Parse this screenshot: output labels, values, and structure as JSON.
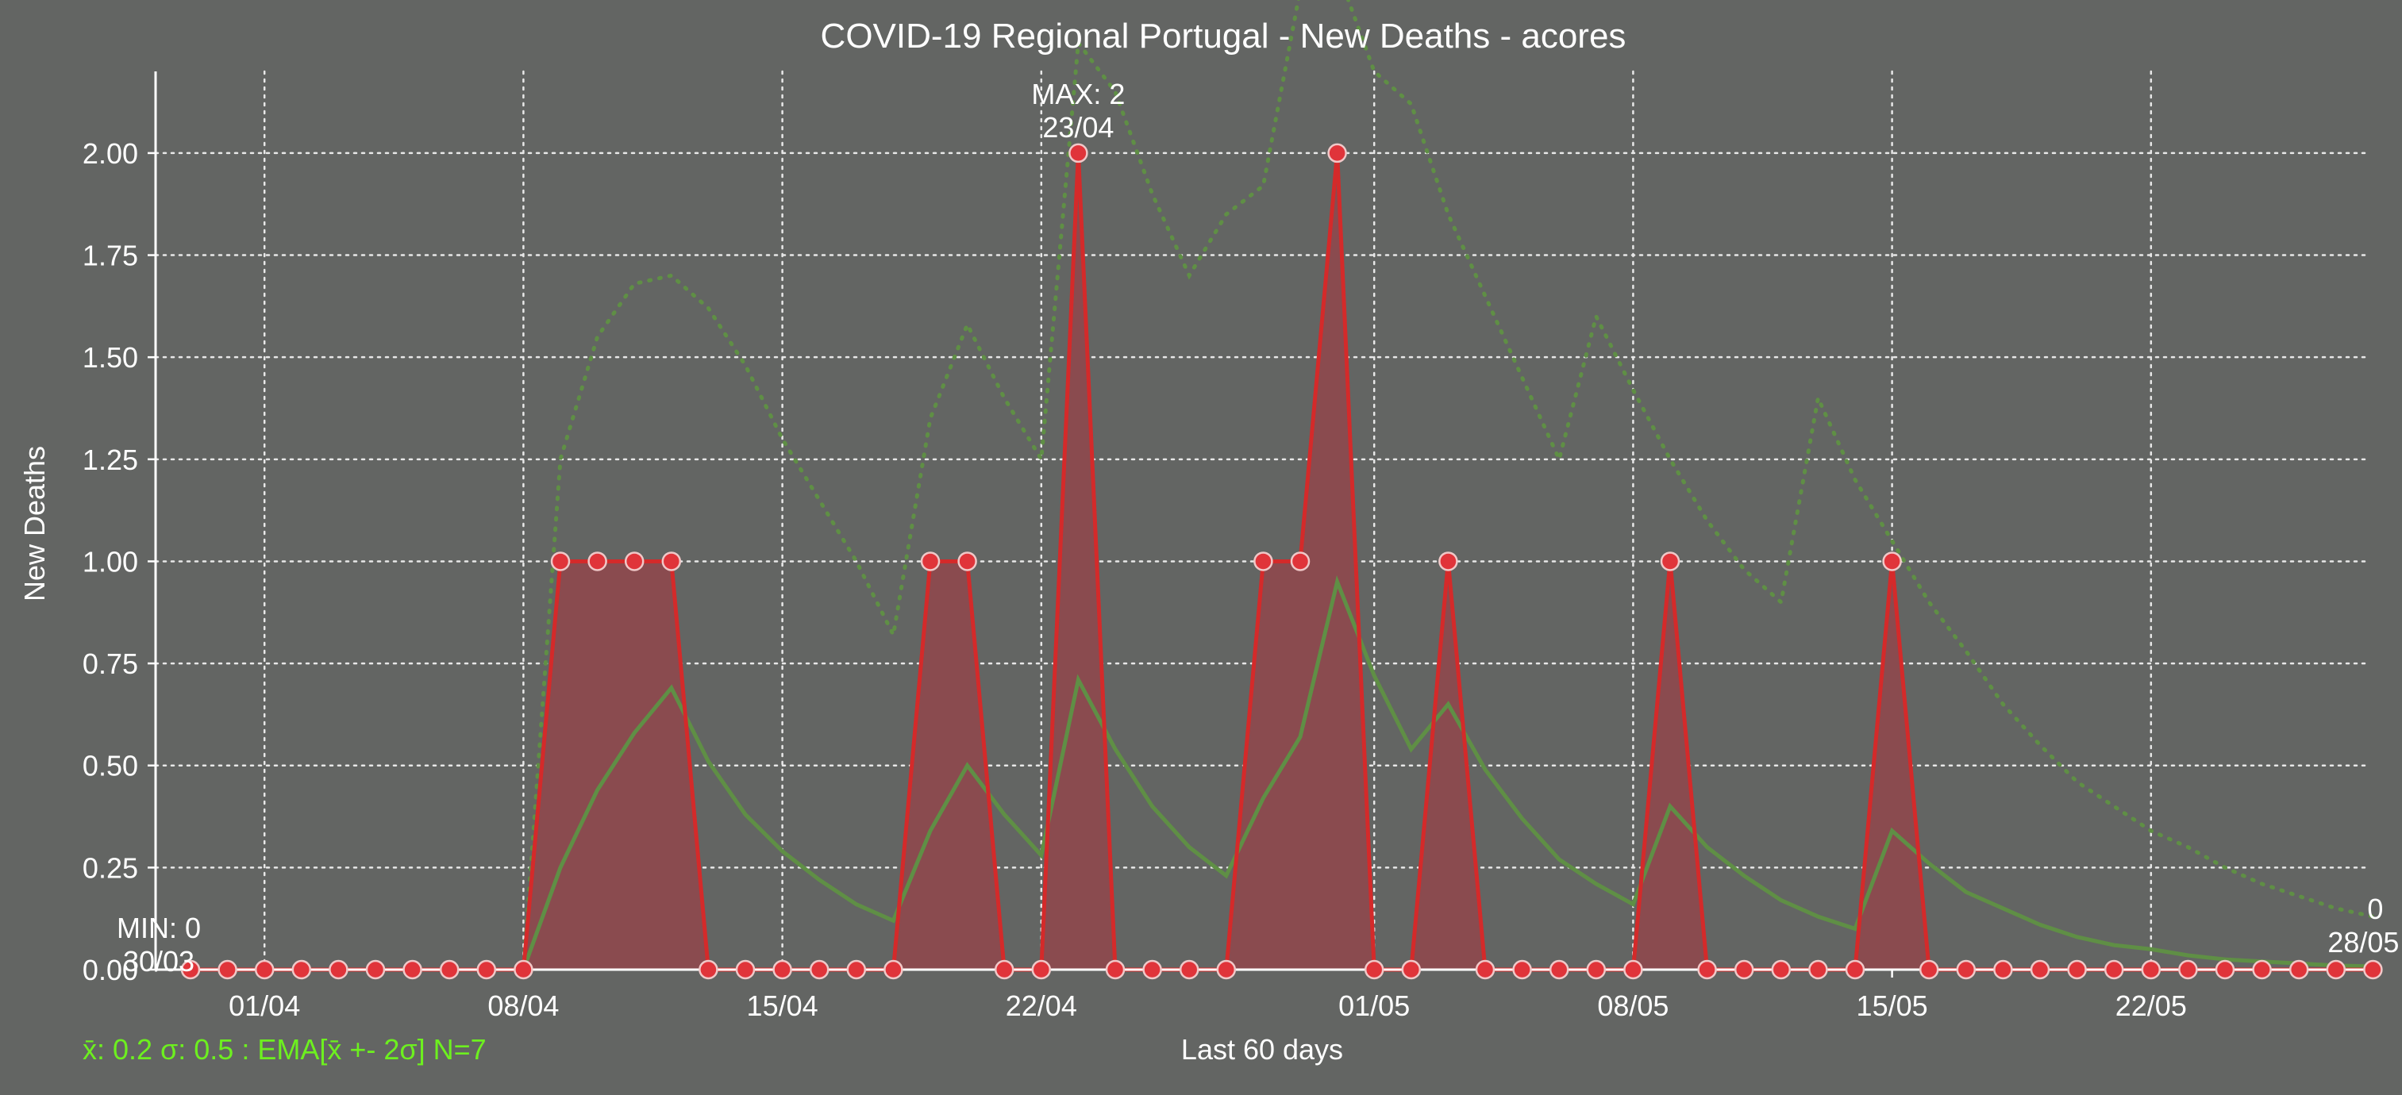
{
  "colors": {
    "background": "#636563",
    "text": "#ffffff",
    "grid": "#e8e8e8",
    "deaths_line": "#d42a2a",
    "deaths_fill": "#8a4b4f",
    "marker_fill": "#e0343a",
    "marker_edge": "#f0c8c8",
    "ema": "#5f8f45",
    "band": "#5f8f45",
    "stats": "#6df01f"
  },
  "chart_data": {
    "type": "line",
    "title": "COVID-19 Regional Portugal - New Deaths - acores",
    "xlabel": "Last 60 days",
    "ylabel": "New Deaths",
    "x": [
      "30/03",
      "31/03",
      "01/04",
      "02/04",
      "03/04",
      "04/04",
      "05/04",
      "06/04",
      "07/04",
      "08/04",
      "09/04",
      "10/04",
      "11/04",
      "12/04",
      "13/04",
      "14/04",
      "15/04",
      "16/04",
      "17/04",
      "18/04",
      "19/04",
      "20/04",
      "21/04",
      "22/04",
      "23/04",
      "24/04",
      "25/04",
      "26/04",
      "27/04",
      "28/04",
      "29/04",
      "30/04",
      "01/05",
      "02/05",
      "03/05",
      "04/05",
      "05/05",
      "06/05",
      "07/05",
      "08/05",
      "09/05",
      "10/05",
      "11/05",
      "12/05",
      "13/05",
      "14/05",
      "15/05",
      "16/05",
      "17/05",
      "18/05",
      "19/05",
      "20/05",
      "21/05",
      "22/05",
      "23/05",
      "24/05",
      "25/05",
      "26/05",
      "27/05",
      "28/05"
    ],
    "x_ticks": [
      "01/04",
      "08/04",
      "15/04",
      "22/04",
      "01/05",
      "08/05",
      "15/05",
      "22/05"
    ],
    "y_ticks": [
      "0.00",
      "0.25",
      "0.50",
      "0.75",
      "1.00",
      "1.25",
      "1.50",
      "1.75",
      "2.00"
    ],
    "ylim": [
      0,
      2.2
    ],
    "grid": true,
    "series": [
      {
        "role": "new_deaths",
        "values": [
          0,
          0,
          0,
          0,
          0,
          0,
          0,
          0,
          0,
          0,
          1,
          1,
          1,
          1,
          0,
          0,
          0,
          0,
          0,
          0,
          1,
          1,
          0,
          0,
          2,
          0,
          0,
          0,
          0,
          1,
          1,
          2,
          0,
          0,
          1,
          0,
          0,
          0,
          0,
          0,
          1,
          0,
          0,
          0,
          0,
          0,
          1,
          0,
          0,
          0,
          0,
          0,
          0,
          0,
          0,
          0,
          0,
          0,
          0,
          0
        ]
      },
      {
        "role": "ema",
        "values": [
          0,
          0,
          0,
          0,
          0,
          0,
          0,
          0,
          0,
          0,
          0.25,
          0.44,
          0.58,
          0.69,
          0.51,
          0.38,
          0.29,
          0.22,
          0.16,
          0.12,
          0.34,
          0.5,
          0.38,
          0.28,
          0.71,
          0.54,
          0.4,
          0.3,
          0.23,
          0.42,
          0.57,
          0.95,
          0.72,
          0.54,
          0.65,
          0.49,
          0.37,
          0.27,
          0.21,
          0.16,
          0.4,
          0.3,
          0.23,
          0.17,
          0.13,
          0.1,
          0.34,
          0.26,
          0.19,
          0.15,
          0.11,
          0.08,
          0.06,
          0.05,
          0.035,
          0.025,
          0.02,
          0.015,
          0.01,
          0.008
        ]
      },
      {
        "role": "ema_upper_band",
        "values": [
          0,
          0,
          0,
          0,
          0,
          0,
          0,
          0,
          0,
          0,
          1.25,
          1.55,
          1.68,
          1.7,
          1.62,
          1.48,
          1.3,
          1.15,
          1.0,
          0.82,
          1.35,
          1.58,
          1.4,
          1.25,
          2.27,
          2.15,
          1.9,
          1.7,
          1.85,
          1.92,
          2.4,
          2.45,
          2.2,
          2.12,
          1.85,
          1.65,
          1.45,
          1.25,
          1.6,
          1.42,
          1.25,
          1.1,
          0.98,
          0.9,
          1.4,
          1.2,
          1.05,
          0.9,
          0.78,
          0.65,
          0.55,
          0.46,
          0.4,
          0.34,
          0.3,
          0.25,
          0.21,
          0.18,
          0.15,
          0.13
        ]
      }
    ],
    "annotations": {
      "max": {
        "label": "MAX: 2",
        "date": "23/04"
      },
      "min": {
        "label": "MIN: 0",
        "date": "30/03"
      },
      "last": {
        "label": "0",
        "date": "28/05"
      }
    },
    "stats_text": "x̄: 0.2 σ: 0.5 : EMA[x̄ +- 2σ] N=7"
  }
}
